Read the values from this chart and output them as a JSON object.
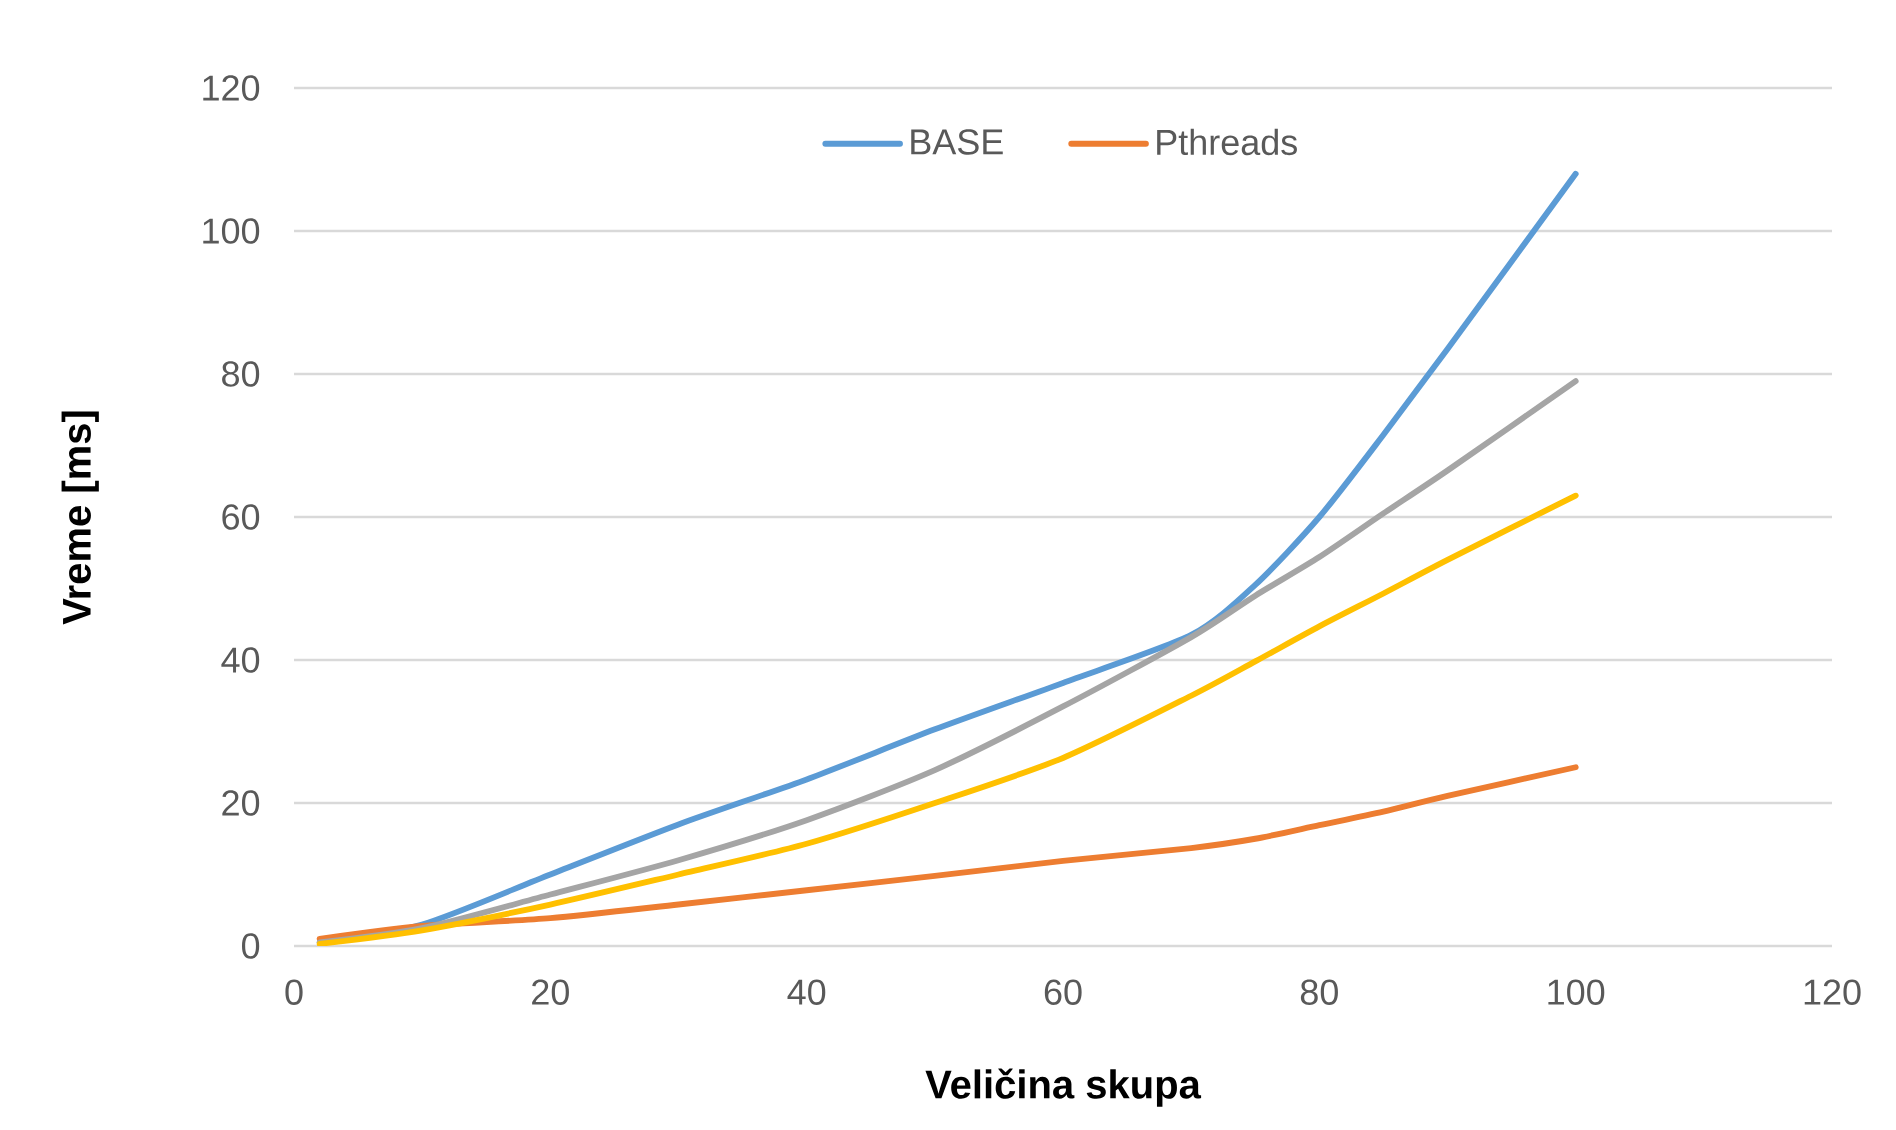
{
  "chart_data": {
    "type": "line",
    "xlabel": "Veličina skupa",
    "ylabel": "Vreme [ms]",
    "x": [
      2,
      10,
      20,
      30,
      40,
      50,
      60,
      70,
      75,
      80,
      85,
      90,
      100
    ],
    "series": [
      {
        "name": "BASE",
        "color": "#5b9bd5",
        "values": [
          0.5,
          3,
          10,
          17,
          23.3,
          30.3,
          36.8,
          43.5,
          50.5,
          60,
          71.5,
          83.5,
          108
        ]
      },
      {
        "name": "Pthreads",
        "color": "#ed7d31",
        "values": [
          1,
          2.8,
          3.9,
          5.8,
          7.8,
          9.8,
          11.9,
          13.7,
          15,
          16.9,
          18.8,
          21,
          25
        ]
      },
      {
        "color": "#a5a5a5",
        "values": [
          0.5,
          2.5,
          7.2,
          12,
          17.6,
          24.6,
          33.5,
          43.2,
          49,
          54.4,
          60.5,
          66.5,
          79
        ]
      },
      {
        "color": "#ffc000",
        "values": [
          0.3,
          2.2,
          5.8,
          10,
          14.3,
          20,
          26.3,
          35,
          39.8,
          44.7,
          49.3,
          54,
          63
        ]
      }
    ],
    "xlim": [
      0,
      120
    ],
    "ylim": [
      0,
      120
    ],
    "xticks": [
      0,
      20,
      40,
      60,
      80,
      100,
      120
    ],
    "yticks": [
      0,
      20,
      40,
      60,
      80,
      100,
      120
    ],
    "grid": "y",
    "legend": "top"
  }
}
